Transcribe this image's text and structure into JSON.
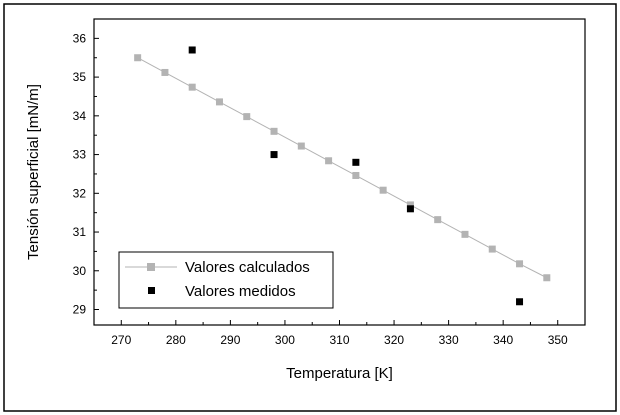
{
  "chart_data": {
    "type": "scatter",
    "xlabel": "Temperatura [K]",
    "ylabel": "Tensión superficial [mN/m]",
    "xlim": [
      265,
      355
    ],
    "ylim": [
      28.6,
      36.5
    ],
    "x_ticks": [
      270,
      280,
      290,
      300,
      310,
      320,
      330,
      340,
      350
    ],
    "y_ticks": [
      29,
      30,
      31,
      32,
      33,
      34,
      35,
      36
    ],
    "legend_position": "bottom-left",
    "grid": false,
    "series": [
      {
        "name": "Valores calculados",
        "style": "line+markers",
        "color": "#b3b3b3",
        "x": [
          273,
          278,
          283,
          288,
          293,
          298,
          303,
          308,
          313,
          318,
          323,
          328,
          333,
          338,
          343,
          348
        ],
        "y": [
          35.5,
          35.12,
          34.74,
          34.36,
          33.98,
          33.6,
          33.22,
          32.84,
          32.46,
          32.08,
          31.7,
          31.32,
          30.94,
          30.56,
          30.18,
          29.82
        ]
      },
      {
        "name": "Valores medidos",
        "style": "markers",
        "color": "#000000",
        "x": [
          283,
          298,
          313,
          323,
          343
        ],
        "y": [
          35.7,
          33.0,
          32.8,
          31.6,
          29.2
        ]
      }
    ]
  }
}
